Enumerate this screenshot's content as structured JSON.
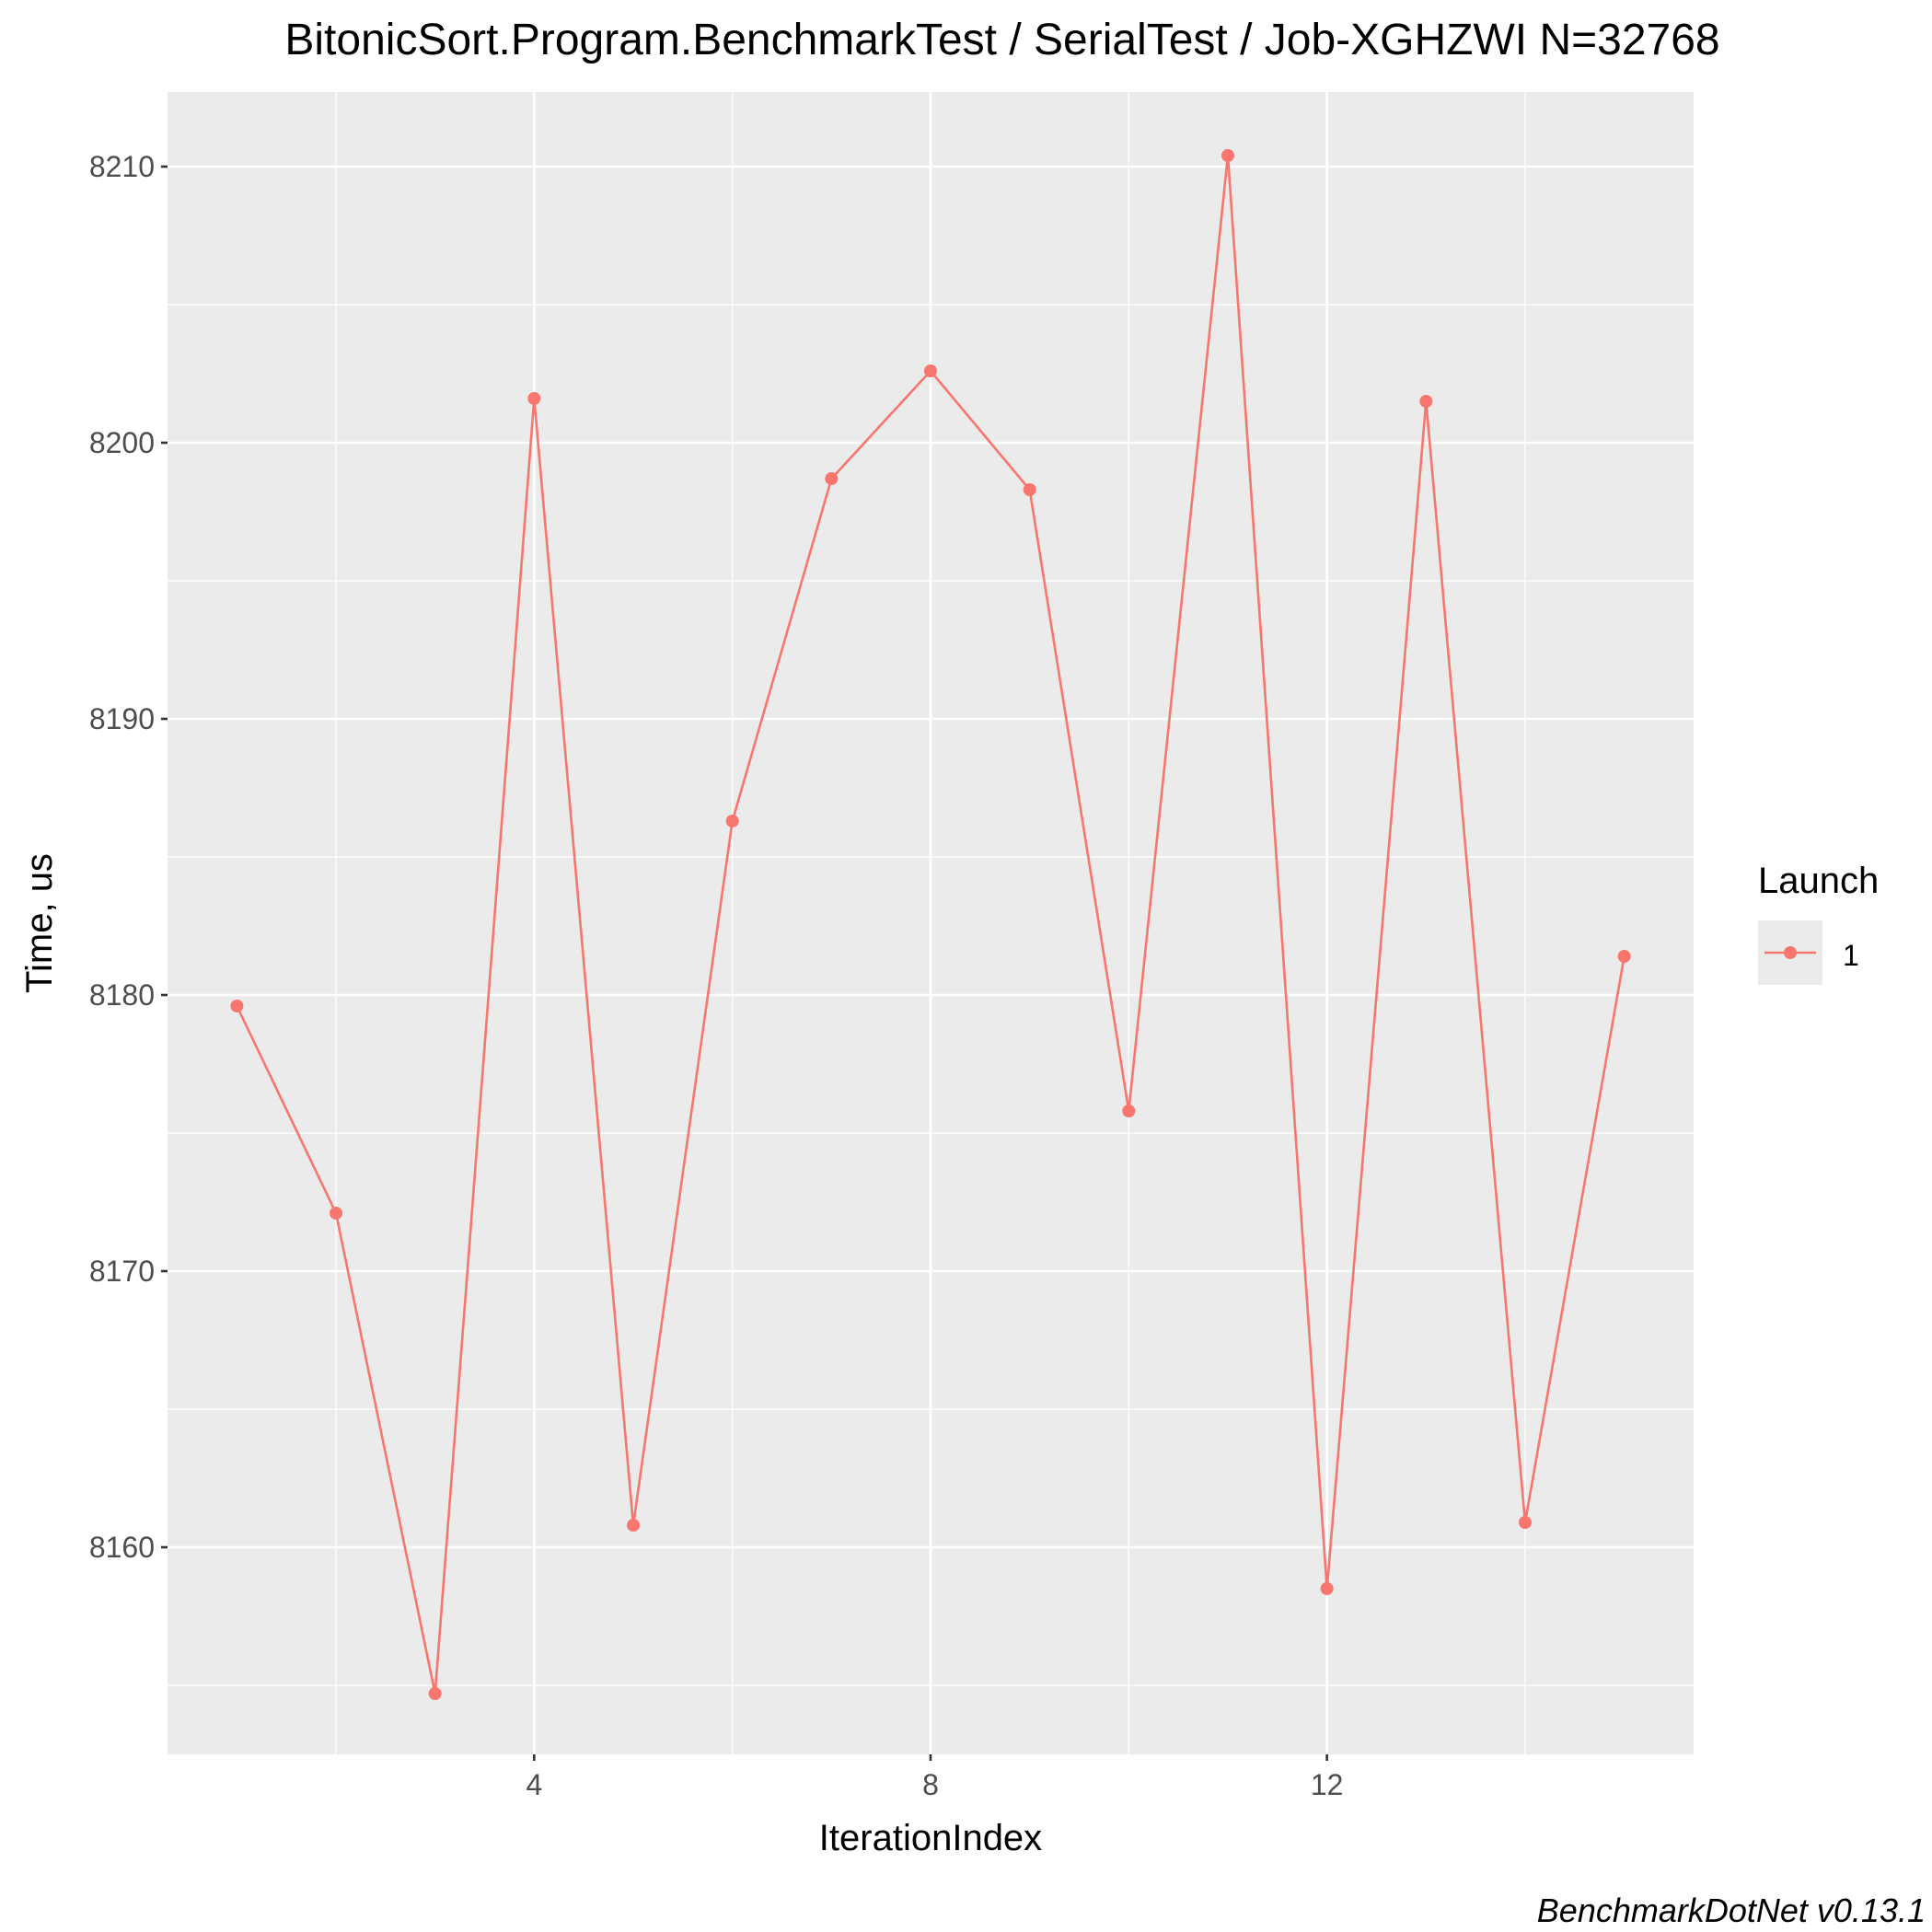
{
  "chart_data": {
    "type": "line",
    "title": "BitonicSort.Program.BenchmarkTest / SerialTest / Job-XGHZWI N=32768",
    "xlabel": "IterationIndex",
    "ylabel": "Time, us",
    "xlim": [
      0.3,
      15.7
    ],
    "ylim": [
      8152.5,
      8212.7
    ],
    "xticks": [
      4,
      8,
      12
    ],
    "xtick_labels": [
      "4",
      "8",
      "12"
    ],
    "xminor": [
      2,
      6,
      10,
      14
    ],
    "yticks": [
      8160,
      8170,
      8180,
      8190,
      8200,
      8210
    ],
    "ytick_labels": [
      "8160",
      "8170",
      "8180",
      "8190",
      "8200",
      "8210"
    ],
    "yminor": [
      8155,
      8165,
      8175,
      8185,
      8195,
      8205
    ],
    "grid": true,
    "legend": {
      "title": "Launch",
      "position": "right",
      "entries": [
        "1"
      ]
    },
    "series": [
      {
        "name": "1",
        "color": "#F8766D",
        "x": [
          1,
          2,
          3,
          4,
          5,
          6,
          7,
          8,
          9,
          10,
          11,
          12,
          13,
          14,
          15
        ],
        "y": [
          8179.6,
          8172.1,
          8154.7,
          8201.6,
          8160.8,
          8186.3,
          8198.7,
          8202.6,
          8198.3,
          8175.8,
          8210.4,
          8158.5,
          8201.5,
          8160.9,
          8181.4
        ]
      }
    ],
    "caption": "BenchmarkDotNet v0.13.1"
  },
  "colors": {
    "panel_background": "#EBEBEB",
    "grid_major": "#FFFFFF",
    "tick_text": "#4D4D4D",
    "text": "#000000"
  }
}
